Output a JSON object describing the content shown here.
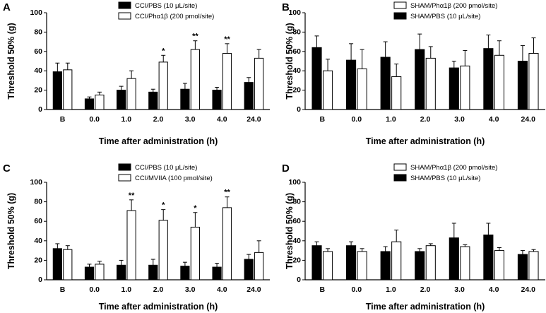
{
  "chart_data": [
    {
      "panel": "A",
      "type": "bar",
      "categories": [
        "B",
        "0.0",
        "1.0",
        "2.0",
        "3.0",
        "4.0",
        "24.0"
      ],
      "xlabel": "Time after administration (h)",
      "ylabel": "Threshold 50% (g)",
      "ylim": [
        0,
        100
      ],
      "yticks": [
        0,
        20,
        40,
        60,
        80,
        100
      ],
      "legend_position": "top-center",
      "series": [
        {
          "name": "CCI/PBS (10 μL/site)",
          "fill": "#000000",
          "values": [
            39,
            11,
            20,
            18,
            21,
            20,
            28
          ],
          "errors": [
            9,
            2,
            4,
            3,
            6,
            3,
            5
          ]
        },
        {
          "name": "CCI/Phα1β (200 pmol/site)",
          "fill": "#ffffff",
          "values": [
            41,
            15,
            32,
            49,
            62,
            58,
            53
          ],
          "errors": [
            7,
            3,
            8,
            7,
            9,
            10,
            9
          ]
        }
      ],
      "annotations": [
        {
          "category_index": 3,
          "series_index": 1,
          "text": "*"
        },
        {
          "category_index": 4,
          "series_index": 1,
          "text": "**"
        },
        {
          "category_index": 5,
          "series_index": 1,
          "text": "**"
        }
      ]
    },
    {
      "panel": "B",
      "type": "bar",
      "categories": [
        "B",
        "0.0",
        "1.0",
        "2.0",
        "3.0",
        "4.0",
        "24.0"
      ],
      "xlabel": "Time after administration (h)",
      "ylabel": "Threshold 50% (g)",
      "ylim": [
        0,
        100
      ],
      "yticks": [
        0,
        20,
        40,
        60,
        80,
        100
      ],
      "legend_position": "top-center",
      "legend_order": [
        1,
        0
      ],
      "series": [
        {
          "name": "SHAM/PBS (10 μL/site)",
          "fill": "#000000",
          "values": [
            64,
            51,
            54,
            62,
            43,
            63,
            50
          ],
          "errors": [
            12,
            17,
            16,
            16,
            7,
            14,
            16
          ]
        },
        {
          "name": "SHAM/Phα1β (200 pmol/site)",
          "fill": "#ffffff",
          "values": [
            40,
            42,
            34,
            53,
            45,
            56,
            58
          ],
          "errors": [
            12,
            20,
            13,
            12,
            16,
            15,
            16
          ]
        }
      ],
      "annotations": []
    },
    {
      "panel": "C",
      "type": "bar",
      "categories": [
        "B",
        "0.0",
        "1.0",
        "2.0",
        "3.0",
        "4.0",
        "24.0"
      ],
      "xlabel": "Time after administration (h)",
      "ylabel": "Threshold 50% (g)",
      "ylim": [
        0,
        100
      ],
      "yticks": [
        0,
        20,
        40,
        60,
        80,
        100
      ],
      "legend_position": "top-center",
      "series": [
        {
          "name": "CCI/PBS (10 μL/site)",
          "fill": "#000000",
          "values": [
            32,
            13,
            15,
            15,
            14,
            13,
            21
          ],
          "errors": [
            5,
            3,
            5,
            6,
            4,
            4,
            5
          ]
        },
        {
          "name": "CCI/MVIIA (100 pmol/site)",
          "fill": "#ffffff",
          "values": [
            31,
            16,
            71,
            61,
            54,
            74,
            28
          ],
          "errors": [
            4,
            3,
            11,
            11,
            15,
            11,
            12
          ]
        }
      ],
      "annotations": [
        {
          "category_index": 2,
          "series_index": 1,
          "text": "**"
        },
        {
          "category_index": 3,
          "series_index": 1,
          "text": "*"
        },
        {
          "category_index": 4,
          "series_index": 1,
          "text": "*"
        },
        {
          "category_index": 5,
          "series_index": 1,
          "text": "**"
        }
      ]
    },
    {
      "panel": "D",
      "type": "bar",
      "categories": [
        "B",
        "0.0",
        "1.0",
        "2.0",
        "3.0",
        "4.0",
        "24.0"
      ],
      "xlabel": "Time after administration (h)",
      "ylabel": "Threshold 50% (g)",
      "ylim": [
        0,
        100
      ],
      "yticks": [
        0,
        20,
        40,
        60,
        80,
        100
      ],
      "legend_position": "top-center",
      "legend_order": [
        1,
        0
      ],
      "series": [
        {
          "name": "SHAM/PBS (10 μL/site)",
          "fill": "#000000",
          "values": [
            35,
            35,
            29,
            29,
            43,
            46,
            26
          ],
          "errors": [
            4,
            4,
            5,
            3,
            15,
            12,
            4
          ]
        },
        {
          "name": "SHAM/Phα1β (200 pmol/site)",
          "fill": "#ffffff",
          "values": [
            29,
            29,
            39,
            35,
            34,
            30,
            29
          ],
          "errors": [
            3,
            3,
            12,
            2,
            2,
            3,
            2
          ]
        }
      ],
      "annotations": []
    }
  ]
}
